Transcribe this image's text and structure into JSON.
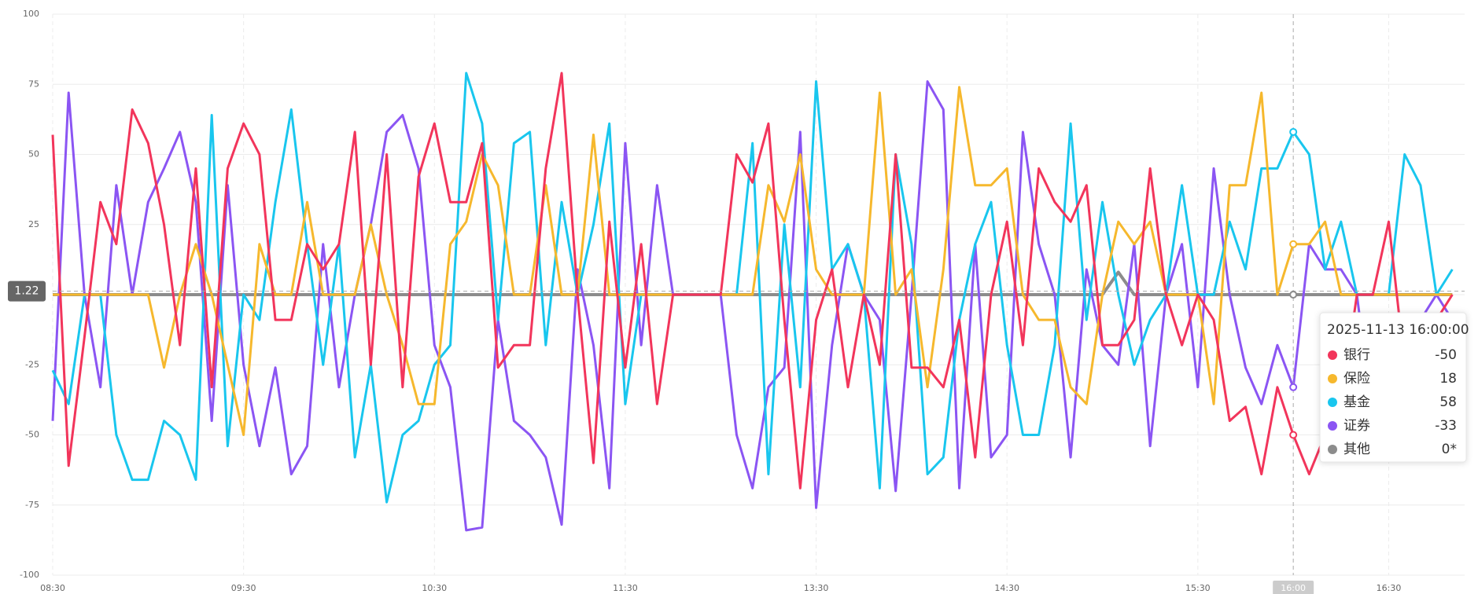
{
  "chart_data": {
    "type": "line",
    "categories": [
      "08:30",
      null,
      null,
      null,
      null,
      null,
      null,
      null,
      null,
      null,
      null,
      null,
      "09:30",
      null,
      null,
      null,
      null,
      null,
      null,
      null,
      null,
      null,
      null,
      null,
      "10:30",
      null,
      null,
      null,
      null,
      null,
      null,
      null,
      null,
      null,
      null,
      null,
      "11:30",
      null,
      null,
      null,
      null,
      null,
      null,
      null,
      null,
      null,
      null,
      null,
      "13:30",
      null,
      null,
      null,
      null,
      null,
      null,
      null,
      null,
      null,
      null,
      null,
      "14:30",
      null,
      null,
      null,
      null,
      null,
      null,
      null,
      null,
      null,
      null,
      null,
      "15:30",
      null,
      null,
      null,
      null,
      null,
      "16:00",
      null,
      null,
      null,
      null,
      null,
      "16:30",
      null,
      null,
      null,
      null
    ],
    "series": [
      {
        "name": "银行",
        "color": "#f2355b",
        "values": [
          57,
          -61,
          -15,
          33,
          18,
          66,
          54,
          25,
          -18,
          45,
          -33,
          45,
          61,
          50,
          -9,
          -9,
          18,
          9,
          18,
          58,
          -25,
          50,
          -33,
          42,
          61,
          33,
          33,
          54,
          -26,
          -18,
          -18,
          45,
          79,
          0,
          -60,
          26,
          -26,
          18,
          -39,
          0,
          0,
          0,
          0,
          50,
          40,
          61,
          -9,
          -69,
          -9,
          9,
          -33,
          0,
          -25,
          50,
          -26,
          -26,
          -33,
          -9,
          -58,
          0,
          26,
          -18,
          45,
          33,
          26,
          39,
          -18,
          -18,
          -9,
          45,
          0,
          -18,
          0,
          -9,
          -45,
          -40,
          -64,
          -33,
          -50,
          -64,
          -50,
          -40,
          0,
          0,
          26,
          -25,
          -25,
          -9,
          0
        ]
      },
      {
        "name": "保险",
        "color": "#f6b82d",
        "values": [
          0,
          0,
          0,
          0,
          0,
          0,
          0,
          -26,
          0,
          18,
          0,
          -25,
          -50,
          18,
          0,
          0,
          33,
          0,
          0,
          0,
          25,
          0,
          -18,
          -39,
          -39,
          18,
          26,
          50,
          39,
          0,
          0,
          39,
          0,
          0,
          57,
          0,
          0,
          0,
          0,
          0,
          0,
          0,
          0,
          0,
          0,
          39,
          26,
          50,
          9,
          0,
          0,
          0,
          72,
          0,
          9,
          -33,
          9,
          74,
          39,
          39,
          45,
          0,
          -9,
          -9,
          -33,
          -39,
          0,
          26,
          18,
          26,
          0,
          0,
          0,
          -39,
          39,
          39,
          72,
          0,
          18,
          18,
          26,
          0,
          0,
          0,
          0,
          0,
          0,
          0,
          0
        ]
      },
      {
        "name": "基金",
        "color": "#19c6ee",
        "values": [
          -27,
          -39,
          0,
          0,
          -50,
          -66,
          -66,
          -45,
          -50,
          -66,
          64,
          -54,
          0,
          -9,
          33,
          66,
          18,
          -25,
          18,
          -58,
          -25,
          -74,
          -50,
          -45,
          -25,
          -18,
          79,
          61,
          -9,
          54,
          58,
          -18,
          33,
          0,
          25,
          61,
          -39,
          0,
          0,
          0,
          0,
          0,
          0,
          0,
          54,
          -64,
          25,
          -33,
          76,
          9,
          18,
          0,
          -69,
          50,
          18,
          -64,
          -58,
          -9,
          18,
          33,
          -18,
          -50,
          -50,
          -18,
          61,
          -9,
          33,
          0,
          -25,
          -9,
          0,
          39,
          0,
          0,
          26,
          9,
          45,
          45,
          58,
          50,
          9,
          26,
          0,
          0,
          0,
          50,
          39,
          0,
          9
        ]
      },
      {
        "name": "证券",
        "color": "#8b55f3",
        "values": [
          -45,
          72,
          0,
          -33,
          39,
          0,
          33,
          45,
          58,
          33,
          -45,
          39,
          -25,
          -54,
          -26,
          -64,
          -54,
          18,
          -33,
          0,
          25,
          58,
          64,
          45,
          -18,
          -33,
          -84,
          -83,
          -9,
          -45,
          -50,
          -58,
          -82,
          9,
          -18,
          -69,
          54,
          -18,
          39,
          0,
          0,
          0,
          0,
          -50,
          -69,
          -33,
          -26,
          58,
          -76,
          -18,
          18,
          0,
          -9,
          -70,
          0,
          76,
          66,
          -69,
          18,
          -58,
          -50,
          58,
          18,
          0,
          -58,
          9,
          -18,
          -25,
          18,
          -54,
          0,
          18,
          -33,
          45,
          0,
          -26,
          -39,
          -18,
          -33,
          18,
          9,
          9,
          0,
          -45,
          -33,
          -25,
          -9,
          0,
          -9
        ]
      },
      {
        "name": "其他",
        "color": "#8c8c8c",
        "values": [
          0,
          0,
          0,
          0,
          0,
          0,
          0,
          0,
          0,
          0,
          0,
          0,
          0,
          0,
          0,
          0,
          0,
          0,
          0,
          0,
          0,
          0,
          0,
          0,
          0,
          0,
          0,
          0,
          0,
          0,
          0,
          0,
          0,
          0,
          0,
          0,
          0,
          0,
          0,
          0,
          0,
          0,
          0,
          0,
          0,
          0,
          0,
          0,
          0,
          0,
          0,
          0,
          0,
          0,
          0,
          0,
          0,
          0,
          0,
          0,
          0,
          0,
          0,
          0,
          0,
          0,
          0,
          8,
          0,
          0,
          0,
          0,
          0,
          0,
          0,
          0,
          0,
          0,
          0,
          0,
          0,
          0,
          0,
          0,
          0,
          0,
          0,
          0,
          0
        ]
      }
    ],
    "ylim": [
      -100,
      100
    ],
    "yticks": [
      -100,
      -75,
      -50,
      -25,
      0,
      25,
      50,
      75,
      100
    ],
    "grid": true,
    "pointer": {
      "index": 78,
      "y": 1.22
    },
    "tooltip": {
      "title": "2025-11-13 16:00:00",
      "labels": [
        "-50",
        "18",
        "58",
        "-33",
        "0*"
      ]
    }
  }
}
